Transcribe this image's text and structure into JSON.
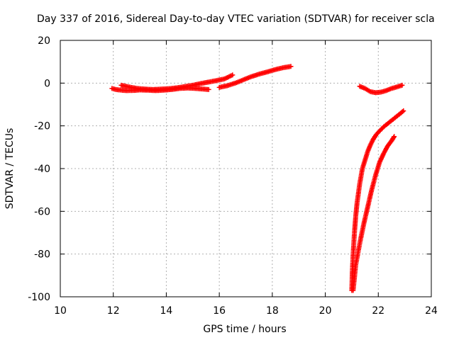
{
  "chart_data": {
    "type": "scatter",
    "title": "Day 337 of 2016, Sidereal Day-to-day VTEC variation (SDTVAR) for receiver scla",
    "xlabel": "GPS time / hours",
    "ylabel": "SDTVAR / TECUs",
    "xlim": [
      10,
      24
    ],
    "ylim": [
      -100,
      20
    ],
    "xticks": [
      "10",
      "12",
      "14",
      "16",
      "18",
      "20",
      "22",
      "24"
    ],
    "yticks": [
      "20",
      "0",
      "-20",
      "-40",
      "-60",
      "-80",
      "-100"
    ],
    "grid": true,
    "marker": "+",
    "series": [
      {
        "color": "#ff0000",
        "points": [
          [
            11.95,
            -2.5
          ],
          [
            12.1,
            -3.0
          ],
          [
            12.3,
            -3.3
          ],
          [
            12.5,
            -3.5
          ],
          [
            12.8,
            -3.4
          ],
          [
            13.0,
            -3.2
          ],
          [
            13.3,
            -3.3
          ],
          [
            13.6,
            -3.5
          ],
          [
            13.9,
            -3.3
          ],
          [
            14.2,
            -3.0
          ],
          [
            14.5,
            -2.5
          ],
          [
            14.8,
            -2.3
          ],
          [
            15.1,
            -2.5
          ],
          [
            15.4,
            -2.8
          ],
          [
            15.6,
            -3.0
          ]
        ]
      },
      {
        "color": "#ff0000",
        "points": [
          [
            12.3,
            -1.0
          ],
          [
            12.6,
            -1.8
          ],
          [
            12.9,
            -2.5
          ],
          [
            13.2,
            -2.8
          ],
          [
            13.5,
            -3.0
          ],
          [
            13.8,
            -2.8
          ],
          [
            14.1,
            -2.6
          ],
          [
            14.4,
            -2.2
          ],
          [
            14.7,
            -1.6
          ],
          [
            15.0,
            -1.0
          ],
          [
            15.3,
            -0.2
          ],
          [
            15.6,
            0.5
          ],
          [
            15.9,
            1.2
          ],
          [
            16.2,
            2.0
          ],
          [
            16.5,
            3.8
          ]
        ]
      },
      {
        "color": "#ff0000",
        "points": [
          [
            16.0,
            -2.0
          ],
          [
            16.3,
            -1.2
          ],
          [
            16.6,
            0.0
          ],
          [
            16.9,
            1.5
          ],
          [
            17.2,
            3.0
          ],
          [
            17.5,
            4.2
          ],
          [
            17.8,
            5.2
          ],
          [
            18.1,
            6.3
          ],
          [
            18.4,
            7.2
          ],
          [
            18.7,
            7.8
          ]
        ]
      },
      {
        "color": "#ff0000",
        "points": [
          [
            21.3,
            -1.5
          ],
          [
            21.5,
            -2.5
          ],
          [
            21.7,
            -4.0
          ],
          [
            21.9,
            -4.5
          ],
          [
            22.1,
            -4.2
          ],
          [
            22.3,
            -3.5
          ],
          [
            22.5,
            -2.5
          ],
          [
            22.7,
            -1.8
          ],
          [
            22.9,
            -1.0
          ]
        ]
      },
      {
        "color": "#ff0000",
        "points": [
          [
            21.0,
            -97
          ],
          [
            21.02,
            -88
          ],
          [
            21.05,
            -80
          ],
          [
            21.1,
            -70
          ],
          [
            21.15,
            -62
          ],
          [
            21.2,
            -56
          ],
          [
            21.3,
            -47
          ],
          [
            21.4,
            -40
          ],
          [
            21.5,
            -36
          ],
          [
            21.6,
            -32
          ],
          [
            21.7,
            -29
          ],
          [
            21.8,
            -26.5
          ],
          [
            21.9,
            -24.5
          ],
          [
            22.0,
            -23
          ],
          [
            22.2,
            -20.5
          ],
          [
            22.4,
            -18.5
          ],
          [
            22.6,
            -16.5
          ],
          [
            22.8,
            -14.5
          ],
          [
            22.95,
            -13
          ]
        ]
      },
      {
        "color": "#ff0000",
        "points": [
          [
            21.05,
            -97
          ],
          [
            21.15,
            -85
          ],
          [
            21.3,
            -75
          ],
          [
            21.45,
            -66
          ],
          [
            21.6,
            -58
          ],
          [
            21.75,
            -50
          ],
          [
            21.9,
            -43
          ],
          [
            22.05,
            -37
          ],
          [
            22.2,
            -33
          ],
          [
            22.35,
            -29.5
          ],
          [
            22.5,
            -27
          ],
          [
            22.6,
            -25
          ]
        ]
      }
    ]
  }
}
